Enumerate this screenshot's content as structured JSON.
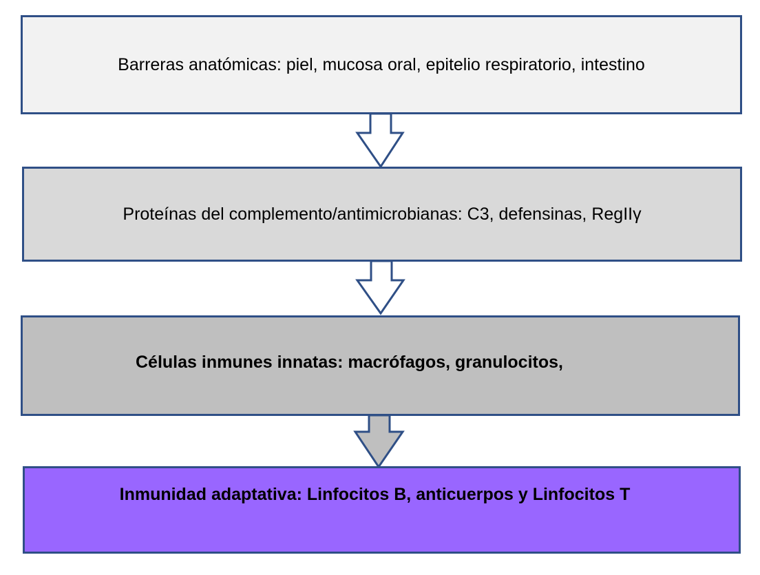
{
  "diagram": {
    "type": "vertical-flowchart",
    "levels": [
      {
        "text": "Barreras anatómicas: piel, mucosa oral, epitelio respiratorio, intestino",
        "fill": "#f2f2f2"
      },
      {
        "text": "Proteínas del complemento/antimicrobianas: C3, defensinas, RegIIγ",
        "fill": "#d9d9d9"
      },
      {
        "text": "Células inmunes innatas: macrófagos, granulocitos,",
        "fill": "#bfbfbf"
      },
      {
        "text": "Inmunidad adaptativa: Linfocitos B, anticuerpos y Linfocitos T",
        "fill": "#9966ff"
      }
    ],
    "connector": {
      "shape": "down-arrow",
      "stroke": "#2f4f86"
    }
  }
}
